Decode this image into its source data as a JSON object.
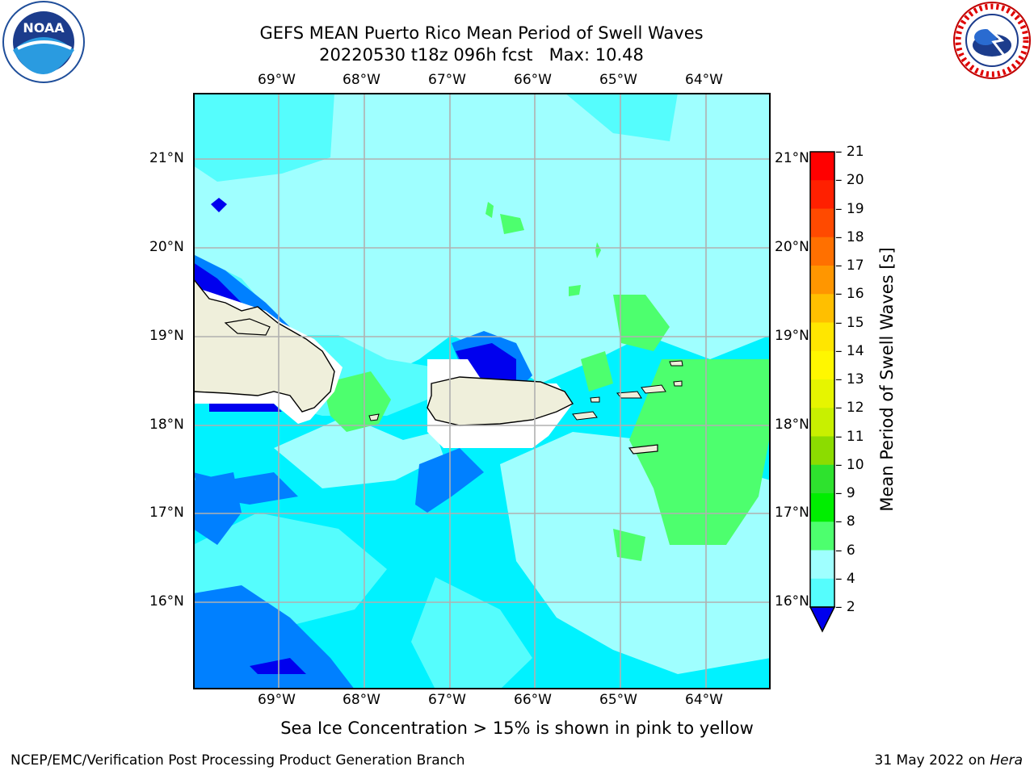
{
  "title_line1": "GEFS MEAN Puerto Rico Mean Period of Swell Waves",
  "title_line2": "20220530 t18z 096h fcst   Max: 10.48",
  "logos": {
    "left": "NOAA",
    "right": "NATIONAL WEATHER SERVICE"
  },
  "lon_ticks": [
    "69°W",
    "68°W",
    "67°W",
    "66°W",
    "65°W",
    "64°W"
  ],
  "lat_ticks": [
    "21°N",
    "20°N",
    "19°N",
    "18°N",
    "17°N",
    "16°N"
  ],
  "colorbar": {
    "label": "Mean Period of Swell Waves [s]",
    "ticks": [
      "21",
      "20",
      "19",
      "18",
      "17",
      "16",
      "15",
      "14",
      "13",
      "12",
      "11",
      "10",
      "9",
      "8",
      "6",
      "4",
      "2"
    ],
    "colors": [
      "#ff0000",
      "#ff2000",
      "#ff4a00",
      "#ff7000",
      "#ff9600",
      "#ffbf00",
      "#ffe600",
      "#fff700",
      "#e6f500",
      "#c8f000",
      "#8cdc00",
      "#2ee22e",
      "#00ee00",
      "#4dff6e",
      "#9fffff",
      "#55fdfd",
      "#00f2ff",
      "#0080ff",
      "#0000ee"
    ]
  },
  "caption": "Sea Ice Concentration > 15% is shown in pink to yellow",
  "footer_left": "NCEP/EMC/Verification Post Processing Product Generation Branch",
  "footer_right_prefix": "31 May 2022 on ",
  "footer_right_host": "Hera"
}
